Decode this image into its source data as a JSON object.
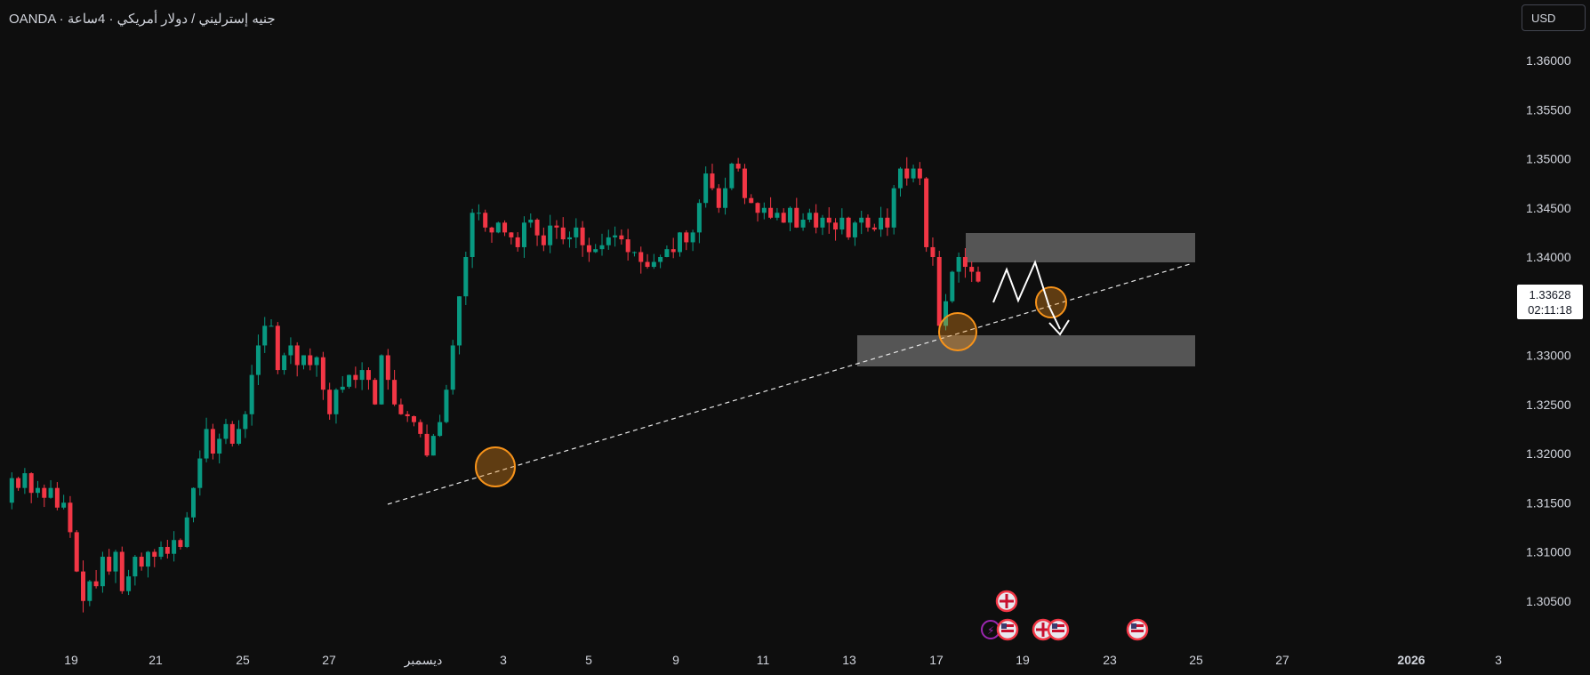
{
  "header": {
    "title": "OANDA · جنيه إسترليني / دولار أمريكي · 4ساعة"
  },
  "currency_button": {
    "label": "USD"
  },
  "current_price": {
    "price": "1.33628",
    "countdown": "02:11:18"
  },
  "colors": {
    "up": "#089981",
    "down": "#f23645",
    "background": "#0e0e0e",
    "zone": "#5d5d5d",
    "circle": "#f7931a"
  },
  "chart_data": {
    "type": "candlestick",
    "title": "OANDA · جنيه إسترليني / دولار أمريكي · 4ساعة",
    "y_axis": {
      "ticks": [
        "1.36000",
        "1.35500",
        "1.35000",
        "1.34500",
        "1.34000",
        "1.33000",
        "1.32500",
        "1.32000",
        "1.31500",
        "1.31000",
        "1.30500"
      ],
      "range": [
        1.3005,
        1.364
      ]
    },
    "x_axis": {
      "ticks": [
        "19",
        "21",
        "25",
        "27",
        "ديسمبر",
        "3",
        "5",
        "9",
        "11",
        "13",
        "17",
        "19",
        "23",
        "25",
        "27",
        "2026",
        "3"
      ]
    },
    "price_path": [
      1.315,
      1.3175,
      1.3165,
      1.318,
      1.316,
      1.3165,
      1.3155,
      1.3165,
      1.3145,
      1.315,
      1.312,
      1.308,
      1.305,
      1.307,
      1.3065,
      1.3095,
      1.308,
      1.31,
      1.306,
      1.3075,
      1.3095,
      1.3085,
      1.31,
      1.3095,
      1.3105,
      1.3098,
      1.3112,
      1.3105,
      1.3135,
      1.3165,
      1.3195,
      1.3225,
      1.32,
      1.3215,
      1.323,
      1.321,
      1.3225,
      1.324,
      1.328,
      1.331,
      1.333,
      1.333,
      1.3285,
      1.33,
      1.331,
      1.329,
      1.33,
      1.329,
      1.3298,
      1.3265,
      1.324,
      1.3265,
      1.3268,
      1.328,
      1.3275,
      1.3285,
      1.3275,
      1.325,
      1.33,
      1.3275,
      1.325,
      1.324,
      1.3238,
      1.3232,
      1.322,
      1.3198,
      1.3218,
      1.3232,
      1.3265,
      1.331,
      1.336,
      1.34,
      1.3445,
      1.3445,
      1.343,
      1.3425,
      1.3435,
      1.3425,
      1.342,
      1.341,
      1.3435,
      1.3438,
      1.3422,
      1.3412,
      1.3432,
      1.343,
      1.3418,
      1.342,
      1.343,
      1.3412,
      1.3405,
      1.3408,
      1.3412,
      1.342,
      1.3422,
      1.3418,
      1.3405,
      1.3405,
      1.3395,
      1.339,
      1.3395,
      1.34,
      1.3408,
      1.3405,
      1.3425,
      1.3415,
      1.3425,
      1.3455,
      1.3485,
      1.347,
      1.345,
      1.347,
      1.3495,
      1.349,
      1.346,
      1.3455,
      1.3445,
      1.345,
      1.344,
      1.3445,
      1.3435,
      1.345,
      1.343,
      1.3438,
      1.3445,
      1.343,
      1.344,
      1.3435,
      1.3428,
      1.344,
      1.342,
      1.3435,
      1.344,
      1.343,
      1.3428,
      1.344,
      1.343,
      1.347,
      1.349,
      1.348,
      1.349,
      1.348,
      1.341,
      1.34,
      1.333,
      1.3355,
      1.3385,
      1.34,
      1.339,
      1.3385,
      1.3375
    ],
    "annotations": {
      "trendline": [
        [
          "1.3158"
        ],
        [
          "1.3393"
        ]
      ],
      "zones": [
        {
          "top": 1.3425,
          "bottom": 1.3395
        },
        {
          "top": 1.332,
          "bottom": 1.329
        }
      ]
    }
  }
}
